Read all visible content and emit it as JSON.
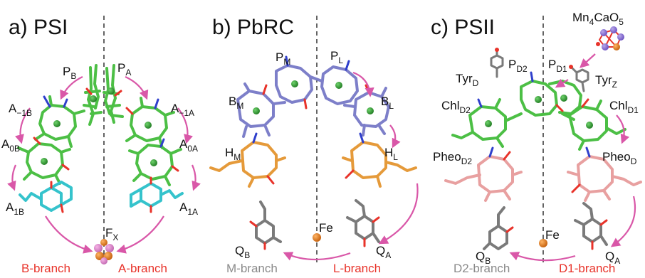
{
  "panels": {
    "psi": {
      "title": "a)  PSI",
      "labels": {
        "pb": [
          "P",
          "B"
        ],
        "pa": [
          "P",
          "A"
        ],
        "a1b_minus": [
          "A",
          "−1B"
        ],
        "a1a_minus": [
          "A",
          "−1A"
        ],
        "a0b": [
          "A",
          "0B"
        ],
        "a0a": [
          "A",
          "0A"
        ],
        "a1b": [
          "A",
          "1B"
        ],
        "a1a": [
          "A",
          "1A"
        ],
        "fx": [
          "F",
          "X"
        ]
      },
      "branches": {
        "left": "B-branch",
        "right": "A-branch"
      }
    },
    "pbrc": {
      "title": "b)  PbRC",
      "labels": {
        "pm": [
          "P",
          "M"
        ],
        "pl": [
          "P",
          "L"
        ],
        "bm": [
          "B",
          "M"
        ],
        "bl": [
          "B",
          "L"
        ],
        "hm": [
          "H",
          "M"
        ],
        "hl": [
          "H",
          "L"
        ],
        "qb": [
          "Q",
          "B"
        ],
        "qa": [
          "Q",
          "A"
        ],
        "fe": "Fe"
      },
      "branches": {
        "left": "M-branch",
        "right": "L-branch"
      }
    },
    "psii": {
      "title": "c)  PSII",
      "labels": {
        "mn": {
          "a": "Mn",
          "b": "4",
          "c": "CaO",
          "d": "5"
        },
        "tyrd": [
          "Tyr",
          "D"
        ],
        "tyrz": [
          "Tyr",
          "Z"
        ],
        "pd2": [
          "P",
          "D2"
        ],
        "pd1": [
          "P",
          "D1"
        ],
        "chld2": [
          "Chl",
          "D2"
        ],
        "chld1": [
          "Chl",
          "D1"
        ],
        "pheod2": [
          "Pheo",
          "D2"
        ],
        "pheod1": [
          "Pheo",
          "D"
        ],
        "qb": [
          "Q",
          "B"
        ],
        "qa": [
          "Q",
          "A"
        ],
        "fe": "Fe"
      },
      "branches": {
        "left": "D2-branch",
        "right": "D1-branch"
      }
    }
  },
  "colors": {
    "chlorophyll": "#4cbf45",
    "bacteriochlorophyll": "#7d7fc9",
    "bacteriopheophytin": "#e59a3a",
    "pheophytin": "#e8a0a0",
    "phylloquinone": "#35c3cc",
    "quinone": "#7a7a7a",
    "arrow": "#d957a8",
    "iron": "#e87e1f",
    "branch_active": "#e8332a",
    "branch_inactive": "#8a8a8a"
  }
}
